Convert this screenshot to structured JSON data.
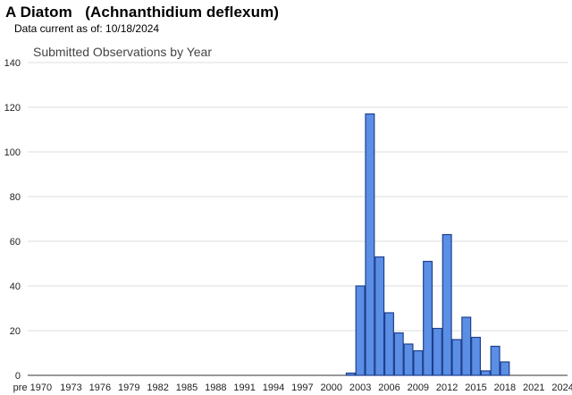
{
  "header": {
    "title": "A Diatom   (Achnanthidium deflexum)",
    "data_current": "Data current as of: 10/18/2024"
  },
  "chart_data": {
    "type": "bar",
    "title": "Submitted Observations by Year",
    "xlabel": "",
    "ylabel": "",
    "ylim": [
      0,
      140
    ],
    "yticks": [
      0,
      20,
      40,
      60,
      80,
      100,
      120,
      140
    ],
    "grid": true,
    "legend": "none",
    "bar_color": "#5b8fe6",
    "bar_edge_color": "#1f3f8c",
    "categories": [
      "pre 1970",
      "1970",
      "1971",
      "1972",
      "1973",
      "1974",
      "1975",
      "1976",
      "1977",
      "1978",
      "1979",
      "1980",
      "1981",
      "1982",
      "1983",
      "1984",
      "1985",
      "1986",
      "1987",
      "1988",
      "1989",
      "1990",
      "1991",
      "1992",
      "1993",
      "1994",
      "1995",
      "1996",
      "1997",
      "1998",
      "1999",
      "2000",
      "2001",
      "2002",
      "2003",
      "2004",
      "2005",
      "2006",
      "2007",
      "2008",
      "2009",
      "2010",
      "2011",
      "2012",
      "2013",
      "2014",
      "2015",
      "2016",
      "2017",
      "2018",
      "2019",
      "2020",
      "2021",
      "2022",
      "2023",
      "2024"
    ],
    "xtick_labels": [
      "pre 1970",
      "1973",
      "1976",
      "1979",
      "1982",
      "1985",
      "1988",
      "1991",
      "1994",
      "1997",
      "2000",
      "2003",
      "2006",
      "2009",
      "2012",
      "2015",
      "2018",
      "2021",
      "2024"
    ],
    "values": [
      0,
      0,
      0,
      0,
      0,
      0,
      0,
      0,
      0,
      0,
      0,
      0,
      0,
      0,
      0,
      0,
      0,
      0,
      0,
      0,
      0,
      0,
      0,
      0,
      0,
      0,
      0,
      0,
      0,
      0,
      0,
      0,
      0,
      1,
      40,
      117,
      53,
      28,
      19,
      14,
      11,
      51,
      21,
      63,
      16,
      26,
      17,
      2,
      13,
      6,
      0,
      0,
      0,
      0,
      0,
      0
    ]
  }
}
